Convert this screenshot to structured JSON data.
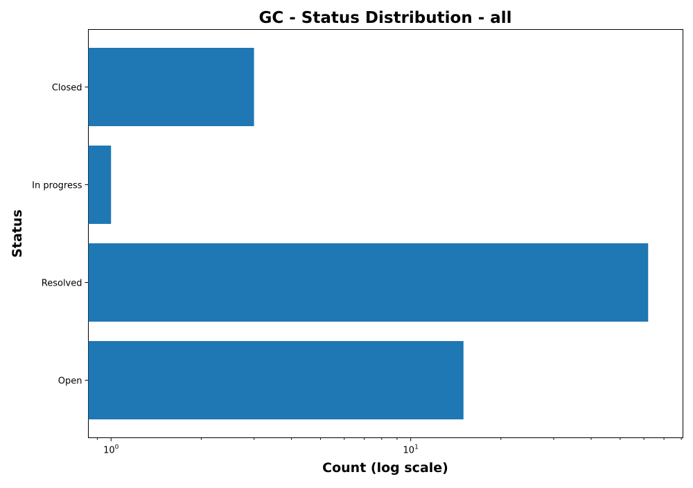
{
  "chart_data": {
    "type": "bar",
    "orientation": "horizontal",
    "title": "GC - Status Distribution - all",
    "xlabel": "Count (log scale)",
    "ylabel": "Status",
    "x_scale": "log",
    "xlim": [
      0.84,
      81
    ],
    "categories": [
      "Open",
      "Resolved",
      "In progress",
      "Closed"
    ],
    "series": [
      {
        "values": [
          15,
          62,
          1,
          3
        ],
        "color": "#1f77b4"
      }
    ],
    "x_ticks": [
      {
        "base": "10",
        "exp": "0",
        "value": 1
      },
      {
        "base": "10",
        "exp": "1",
        "value": 10
      }
    ],
    "grid": false,
    "legend": "none"
  }
}
